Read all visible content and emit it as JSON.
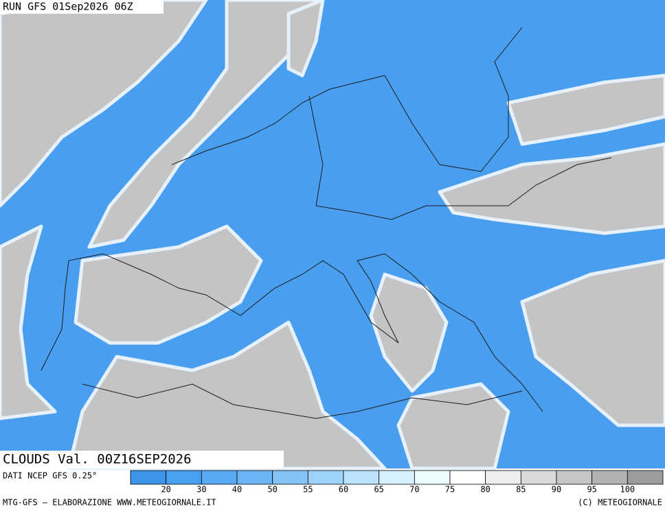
{
  "header": {
    "run": "RUN GFS 01Sep2026 06Z",
    "product": "CLOUDS Val. 00Z16SEP2026"
  },
  "legend": {
    "source": "DATI NCEP GFS 0.25°",
    "colors": [
      "#3c93ea",
      "#48a0f0",
      "#58aaf3",
      "#6ab5f5",
      "#84c3f7",
      "#9fd2f9",
      "#bbe2fb",
      "#d6f0fc",
      "#ecfcff",
      "#ffffff",
      "#eeeeee",
      "#dadada",
      "#c6c6c6",
      "#b2b2b2",
      "#9c9c9c"
    ],
    "labels": [
      20,
      30,
      40,
      50,
      55,
      60,
      65,
      70,
      75,
      80,
      85,
      90,
      95,
      100
    ]
  },
  "footer": {
    "left": "MTG-GFS — ELABORAZIONE WWW.METEOGIORNALE.IT",
    "right": "(C) METEOGIORNALE"
  }
}
